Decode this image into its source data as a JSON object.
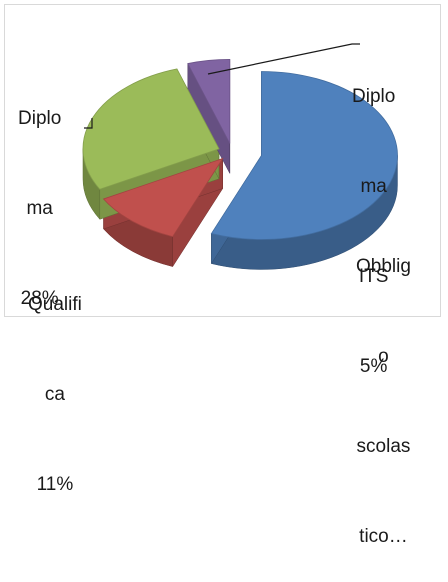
{
  "chart_data": {
    "type": "pie",
    "style": "3d-exploded",
    "slices": [
      {
        "label": "Obbligo scolastico",
        "value": 56,
        "color": "#4F81BD",
        "label_lines": [
          "Obblig",
          "o",
          "scolas",
          "tico…"
        ]
      },
      {
        "label": "Qualifica",
        "value": 11,
        "color": "#C0504D",
        "label_lines": [
          "Qualifi",
          "ca",
          "11%"
        ]
      },
      {
        "label": "Diploma",
        "value": 28,
        "color": "#9BBB59",
        "label_lines": [
          "Diplo",
          "ma",
          "28%"
        ]
      },
      {
        "label": "Diploma ITS",
        "value": 5,
        "color": "#8064A2",
        "label_lines": [
          "Diplo",
          "ma",
          "ITS",
          "5%"
        ]
      }
    ]
  }
}
